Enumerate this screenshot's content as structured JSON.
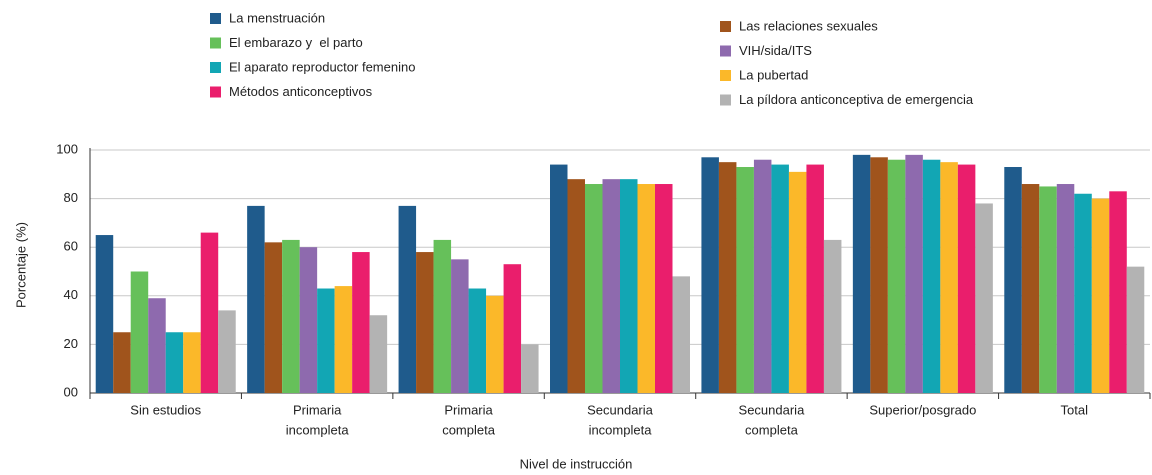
{
  "chart_data": {
    "type": "bar",
    "x_label": "Nivel de instrucción",
    "y_label": "Porcentaje (%)",
    "categories": [
      [
        "Sin estudios"
      ],
      [
        "Primaria",
        "incompleta"
      ],
      [
        "Primaria",
        "completa"
      ],
      [
        "Secundaria",
        "incompleta"
      ],
      [
        "Secundaria",
        "completa"
      ],
      [
        "Superior/posgrado"
      ],
      [
        "Total"
      ]
    ],
    "series": [
      {
        "name": "La menstruación",
        "color": "#1f5b8c",
        "values": [
          65,
          77,
          77,
          94,
          97,
          98,
          93
        ]
      },
      {
        "name": "Las relaciones sexuales",
        "color": "#a0541c",
        "values": [
          25,
          62,
          58,
          88,
          95,
          97,
          86
        ]
      },
      {
        "name": "El embarazo y  el parto",
        "color": "#66c05a",
        "values": [
          50,
          63,
          63,
          86,
          93,
          96,
          85
        ]
      },
      {
        "name": "VIH/sida/ITS",
        "color": "#8e6aae",
        "values": [
          39,
          60,
          55,
          88,
          96,
          98,
          86
        ]
      },
      {
        "name": "El aparato reproductor femenino",
        "color": "#12a6b4",
        "values": [
          25,
          43,
          43,
          88,
          94,
          96,
          82
        ]
      },
      {
        "name": "La pubertad",
        "color": "#fbb829",
        "values": [
          25,
          44,
          40,
          86,
          91,
          95,
          80
        ]
      },
      {
        "name": "Métodos anticonceptivos",
        "color": "#ea1e6c",
        "values": [
          66,
          58,
          53,
          86,
          94,
          94,
          83
        ]
      },
      {
        "name": "La píldora anticonceptiva de emergencia",
        "color": "#b3b3b3",
        "values": [
          34,
          32,
          20,
          48,
          63,
          78,
          52
        ]
      }
    ],
    "ylim": [
      0,
      100
    ],
    "yticks": [
      {
        "value": 0,
        "label": "00"
      },
      20,
      40,
      60,
      80,
      100
    ],
    "grid": true
  }
}
